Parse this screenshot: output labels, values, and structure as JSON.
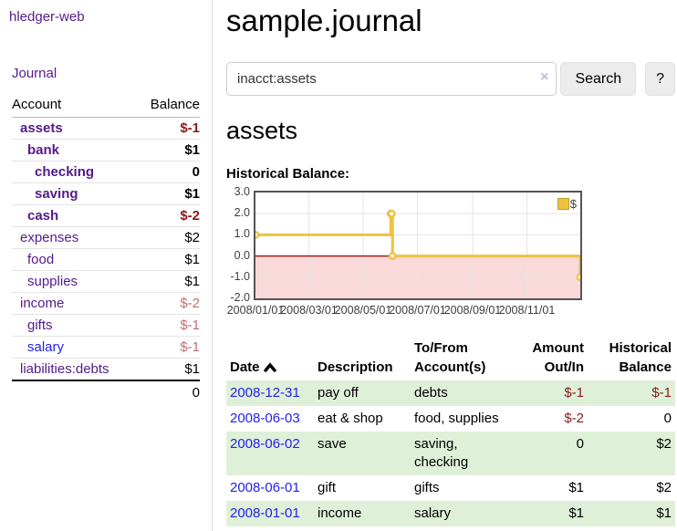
{
  "app": {
    "brand": "hledger-web"
  },
  "sidebar": {
    "nav_journal": "Journal",
    "table": {
      "col_account": "Account",
      "col_balance": "Balance"
    },
    "accounts": [
      {
        "name": "assets",
        "balance": "$-1"
      },
      {
        "name": "bank",
        "balance": "$1"
      },
      {
        "name": "checking",
        "balance": "0"
      },
      {
        "name": "saving",
        "balance": "$1"
      },
      {
        "name": "cash",
        "balance": "$-2"
      },
      {
        "name": "expenses",
        "balance": "$2"
      },
      {
        "name": "food",
        "balance": "$1"
      },
      {
        "name": "supplies",
        "balance": "$1"
      },
      {
        "name": "income",
        "balance": "$-2"
      },
      {
        "name": "gifts",
        "balance": "$-1"
      },
      {
        "name": "salary",
        "balance": "$-1"
      },
      {
        "name": "liabilities:debts",
        "balance": "$1"
      }
    ],
    "total": "0"
  },
  "header": {
    "title": "sample.journal"
  },
  "search": {
    "value": "inacct:assets",
    "clear": "×",
    "button": "Search",
    "help": "?"
  },
  "account_page": {
    "heading": "assets",
    "chart_label": "Historical Balance:"
  },
  "chart_data": {
    "type": "line",
    "style": "step-after",
    "title": "Historical Balance",
    "series": [
      {
        "name": "$",
        "color": "#edc240",
        "points": [
          [
            "2008-01-01",
            1
          ],
          [
            "2008-06-01",
            2
          ],
          [
            "2008-06-02",
            2
          ],
          [
            "2008-06-03",
            0
          ],
          [
            "2008-12-31",
            -1
          ]
        ]
      }
    ],
    "x_range": [
      "2008-01-01",
      "2008-12-31"
    ],
    "ylim": [
      -2,
      3
    ],
    "yticks": [
      {
        "v": 3,
        "label": "3.0"
      },
      {
        "v": 2,
        "label": "2.0"
      },
      {
        "v": 1,
        "label": "1.0"
      },
      {
        "v": 0,
        "label": "0.0"
      },
      {
        "v": -1,
        "label": "-1.0"
      },
      {
        "v": -2,
        "label": "-2.0"
      }
    ],
    "xticks": [
      {
        "date": "2008-01-01",
        "label": "2008/01/01"
      },
      {
        "date": "2008-03-01",
        "label": "2008/03/01"
      },
      {
        "date": "2008-05-01",
        "label": "2008/05/01"
      },
      {
        "date": "2008-07-01",
        "label": "2008/07/01"
      },
      {
        "date": "2008-09-01",
        "label": "2008/09/01"
      },
      {
        "date": "2008-11-01",
        "label": "2008/11/01"
      }
    ],
    "legend": {
      "label": "$",
      "position": "top-right"
    },
    "grid": true,
    "grid_color": "#e5e5e5",
    "border_color": "#545454",
    "negative_region_fill": "#f9d9d9",
    "zero_line_color": "#990000"
  },
  "transactions": {
    "columns": {
      "date": "Date",
      "description": "Description",
      "accounts_line1": "To/From",
      "accounts_line2": "Account(s)",
      "amount_line1": "Amount",
      "amount_line2": "Out/In",
      "balance_line1": "Historical",
      "balance_line2": "Balance"
    },
    "rows": [
      {
        "date": "2008-12-31",
        "description": "pay off",
        "accounts": "debts",
        "amount": "$-1",
        "balance": "$-1"
      },
      {
        "date": "2008-06-03",
        "description": "eat & shop",
        "accounts": "food, supplies",
        "amount": "$-2",
        "balance": "0"
      },
      {
        "date": "2008-06-02",
        "description": "save",
        "accounts": "saving, checking",
        "amount": "0",
        "balance": "$2"
      },
      {
        "date": "2008-06-01",
        "description": "gift",
        "accounts": "gifts",
        "amount": "$1",
        "balance": "$2"
      },
      {
        "date": "2008-01-01",
        "description": "income",
        "accounts": "salary",
        "amount": "$1",
        "balance": "$1"
      }
    ]
  },
  "colors": {
    "link_visited_purple": "#551a8b",
    "link_blue": "#2222ee",
    "negative_red": "#8b1a1a",
    "negative_light_red": "#bf6f6f",
    "row_green": "#dff0d8",
    "chart_line_gold": "#edc240"
  }
}
